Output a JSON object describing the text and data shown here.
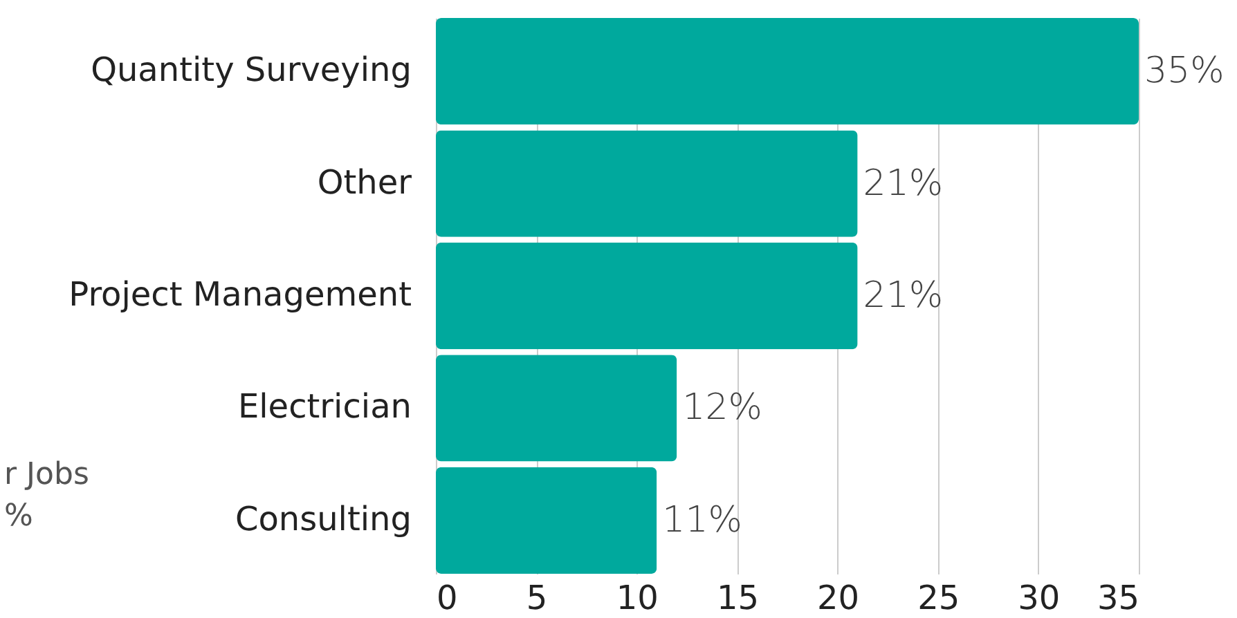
{
  "chart_data": {
    "type": "bar",
    "orientation": "horizontal",
    "categories": [
      "Quantity Surveying",
      "Other",
      "Project Management",
      "Electrician",
      "Consulting"
    ],
    "values": [
      35,
      21,
      21,
      12,
      11
    ],
    "value_labels": [
      "35%",
      "21%",
      "21%",
      "12%",
      "11%"
    ],
    "color": "#00a99d",
    "xlim": [
      0,
      35
    ],
    "xticks": [
      0,
      5,
      10,
      15,
      20,
      25,
      30,
      35
    ],
    "grid": "x",
    "annotations": [
      "r Jobs",
      "%"
    ]
  }
}
